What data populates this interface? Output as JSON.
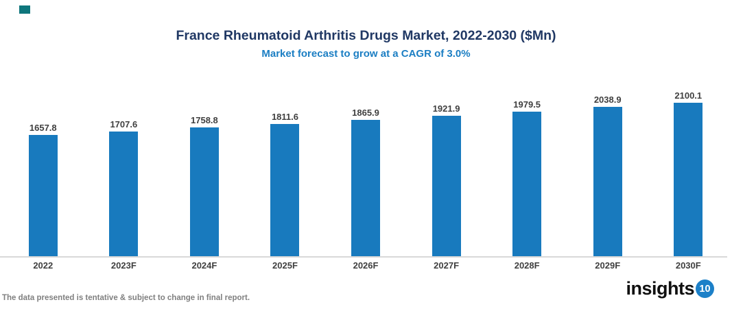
{
  "page": {
    "background": "#ffffff"
  },
  "corner_mark": {
    "color": "#0E767C"
  },
  "header": {
    "title": "France Rheumatoid Arthritis Drugs Market, 2022-2030 ($Mn)",
    "subtitle": "Market forecast to grow at a CAGR of 3.0%",
    "title_color": "#203864",
    "subtitle_color": "#1B7EC3"
  },
  "chart_data": {
    "type": "bar",
    "title": "France Rheumatoid Arthritis Drugs Market, 2022-2030 ($Mn)",
    "subtitle": "Market forecast to grow at a CAGR of 3.0%",
    "categories": [
      "2022",
      "2023F",
      "2024F",
      "2025F",
      "2026F",
      "2027F",
      "2028F",
      "2029F",
      "2030F"
    ],
    "values": [
      1657.8,
      1707.6,
      1758.8,
      1811.6,
      1865.9,
      1921.9,
      1979.5,
      2038.9,
      2100.1
    ],
    "xlabel": "",
    "ylabel": "",
    "ylim": [
      0,
      2300
    ],
    "grid": false,
    "legend": false,
    "data_labels": true,
    "bar_color": "#187ABE",
    "value_label_color": "#3F3F3F",
    "tick_label_color": "#3F3F3F",
    "axis_line_color": "#D8D8D8"
  },
  "footer": {
    "note": "The data presented is tentative & subject to change in final report.",
    "note_color": "#808080",
    "logo_text": "insights",
    "logo_badge": "10",
    "logo_badge_color": "#1C80C8"
  }
}
